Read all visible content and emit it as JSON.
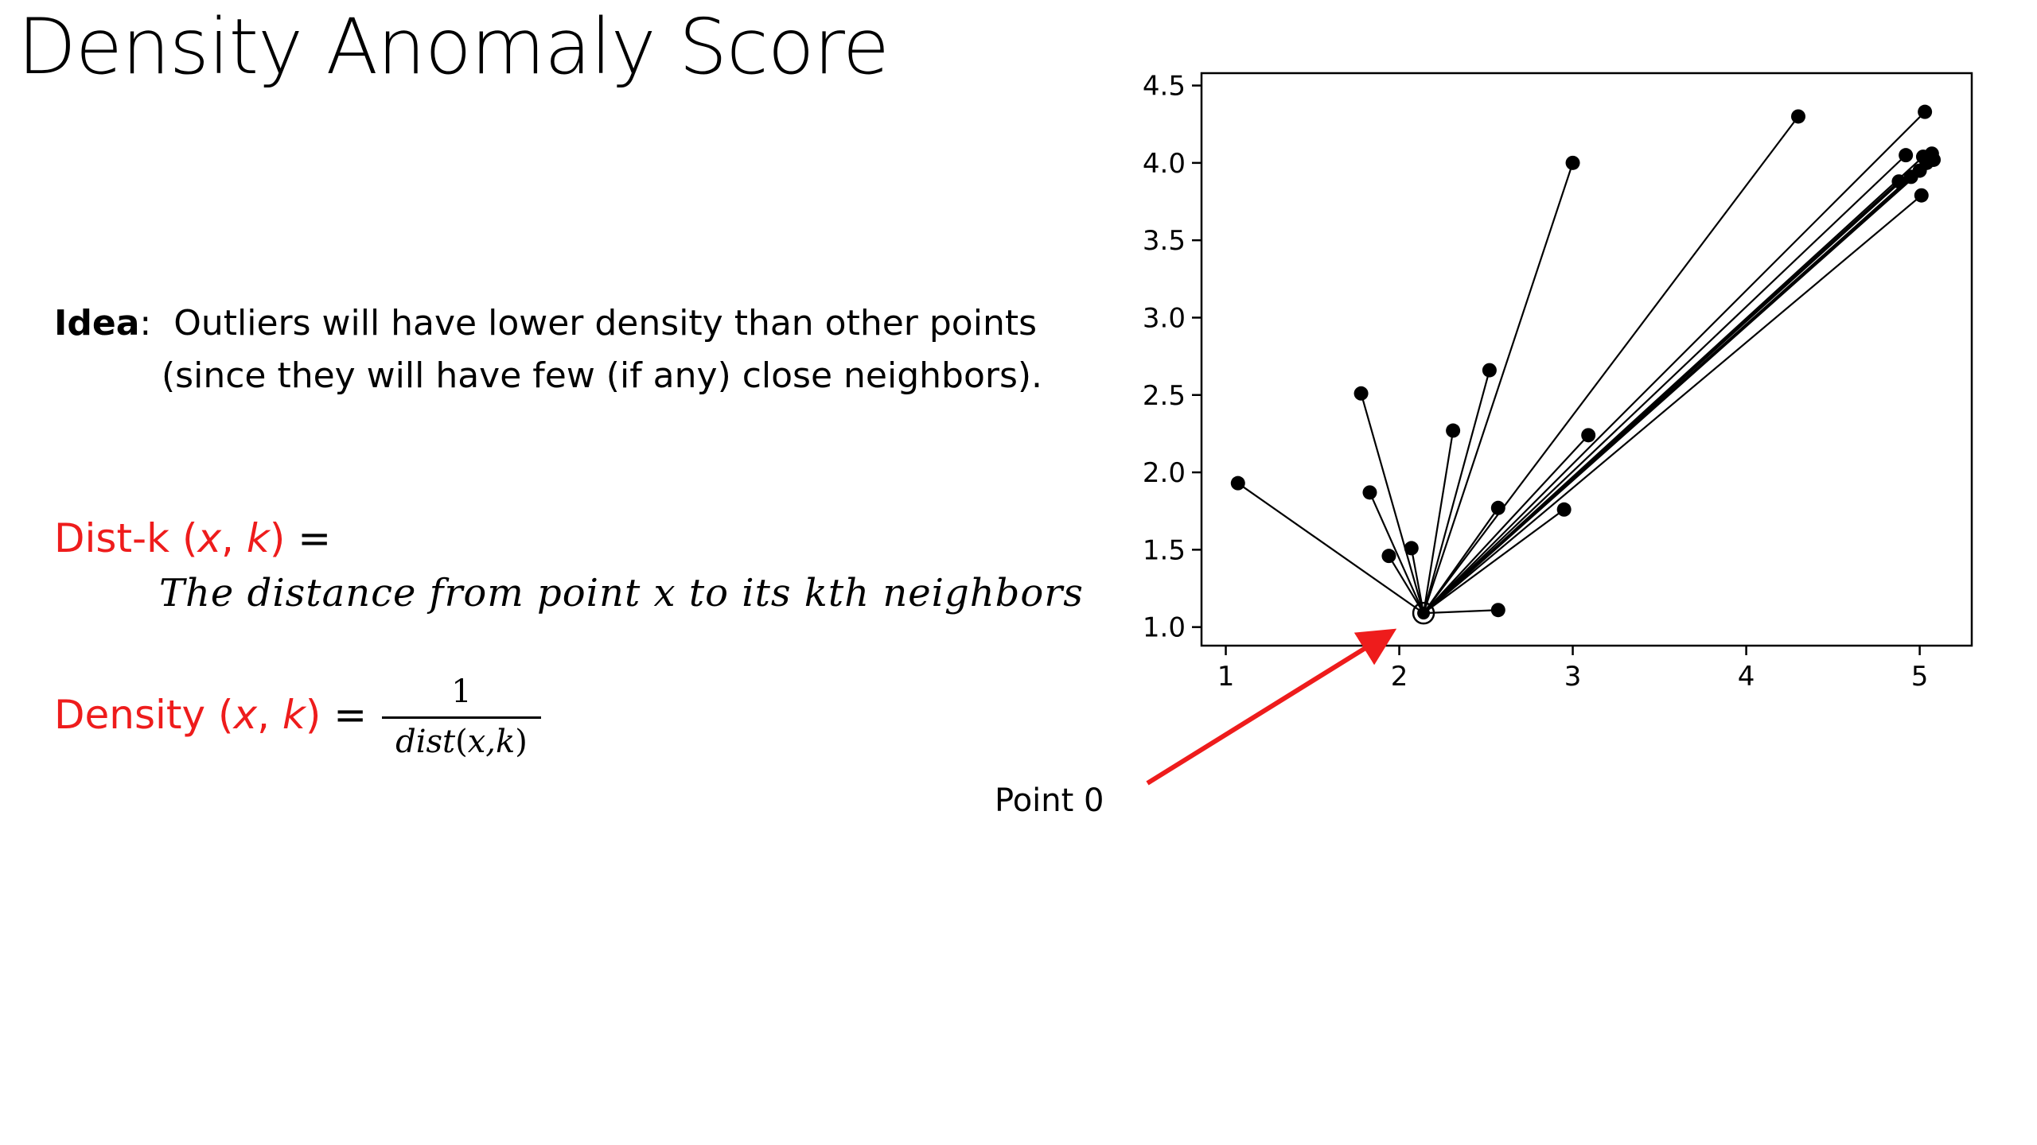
{
  "slide": {
    "title": "Density Anomaly Score",
    "idea": {
      "label": "Idea",
      "colon": ":",
      "line1": "Outliers will have lower density than other points",
      "line2": "(since they will have few (if any) close neighbors)."
    },
    "dist_k": {
      "name": "Dist-k",
      "open": " (",
      "x": "x",
      "comma": ", ",
      "k": "k",
      "close": ")",
      "equals": " =",
      "description": "The distance from point x to its kth neighbors"
    },
    "density": {
      "name": "Density",
      "open": " (",
      "x": "x",
      "comma": ", ",
      "k": "k",
      "close": ")",
      "equals": " =",
      "numerator": "1",
      "denominator_func": "dist",
      "denominator_args": "x,k"
    },
    "annotation": {
      "label": "Point 0",
      "arrow_color": "#ee1c1c"
    },
    "accent_color": "#ee1c1c"
  },
  "chart_data": {
    "type": "scatter",
    "title": "",
    "xlabel": "",
    "ylabel": "",
    "xlim": [
      0.86,
      5.3
    ],
    "ylim": [
      0.88,
      4.58
    ],
    "xticks": [
      1,
      2,
      3,
      4,
      5
    ],
    "yticks": [
      1.0,
      1.5,
      2.0,
      2.5,
      3.0,
      3.5,
      4.0,
      4.5
    ],
    "xtick_labels": [
      "1",
      "2",
      "3",
      "4",
      "5"
    ],
    "ytick_labels": [
      "1.0",
      "1.5",
      "2.0",
      "2.5",
      "3.0",
      "3.5",
      "4.0",
      "4.5"
    ],
    "grid": false,
    "center": {
      "x": 2.14,
      "y": 1.09
    },
    "points": [
      {
        "x": 1.07,
        "y": 1.93
      },
      {
        "x": 1.78,
        "y": 2.51
      },
      {
        "x": 1.83,
        "y": 1.87
      },
      {
        "x": 1.94,
        "y": 1.46
      },
      {
        "x": 2.07,
        "y": 1.51
      },
      {
        "x": 2.31,
        "y": 2.27
      },
      {
        "x": 2.52,
        "y": 2.66
      },
      {
        "x": 2.57,
        "y": 1.77
      },
      {
        "x": 2.57,
        "y": 1.11
      },
      {
        "x": 2.95,
        "y": 1.76
      },
      {
        "x": 3.0,
        "y": 4.0
      },
      {
        "x": 3.09,
        "y": 2.24
      },
      {
        "x": 4.3,
        "y": 4.3
      },
      {
        "x": 4.88,
        "y": 3.88
      },
      {
        "x": 4.92,
        "y": 4.05
      },
      {
        "x": 4.95,
        "y": 3.91
      },
      {
        "x": 5.0,
        "y": 3.95
      },
      {
        "x": 5.01,
        "y": 3.79
      },
      {
        "x": 5.02,
        "y": 4.04
      },
      {
        "x": 5.03,
        "y": 4.33
      },
      {
        "x": 5.04,
        "y": 4.0
      },
      {
        "x": 5.07,
        "y": 4.06
      },
      {
        "x": 5.08,
        "y": 4.02
      }
    ]
  }
}
